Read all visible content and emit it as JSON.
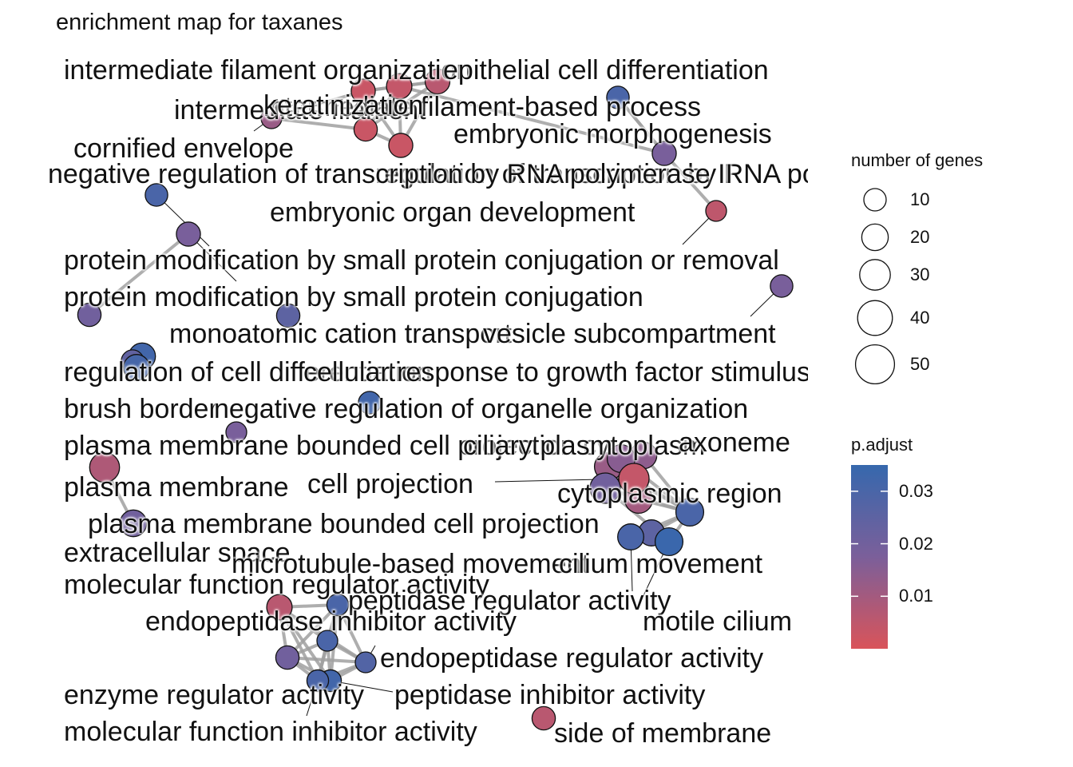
{
  "title": "enrichment map for taxanes",
  "colors": {
    "low": "#d9545a",
    "mid": "#7b5f9a",
    "high": "#3668ad",
    "edge": "#a0a0a0"
  },
  "nodes": [
    {
      "id": "n1",
      "label": "intermediate filament organization",
      "size": 18,
      "p": 0.003
    },
    {
      "id": "n2",
      "label": "epithelial cell differentiation",
      "size": 22,
      "p": 0.004
    },
    {
      "id": "n3",
      "label": "intermediate filament",
      "size": 16,
      "p": 0.003
    },
    {
      "id": "n4",
      "label": "intermediate filament-based process",
      "size": 20,
      "p": 0.006
    },
    {
      "id": "n5",
      "label": "cornified envelope",
      "size": 10,
      "p": 0.012
    },
    {
      "id": "n6",
      "label": "embryonic morphogenesis",
      "size": 18,
      "p": 0.018
    },
    {
      "id": "n7",
      "label": "keratinization",
      "size": 18,
      "p": 0.003
    },
    {
      "id": "n8",
      "label": "regulation of transcription by RNA polymerase II",
      "size": 14,
      "p": 0.03
    },
    {
      "id": "n9",
      "label": "negative regulation of transcription by RNA polymerase II",
      "size": 14,
      "p": 0.03
    },
    {
      "id": "n10",
      "label": "embryonic organ development",
      "size": 10,
      "p": 0.005
    },
    {
      "id": "n11",
      "label": "protein modification by small protein conjugation or removal",
      "size": 18,
      "p": 0.018
    },
    {
      "id": "n12",
      "label": "protein modification by small protein conjugation",
      "size": 16,
      "p": 0.02
    },
    {
      "id": "n13",
      "label": "monoatomic cation transport",
      "size": 16,
      "p": 0.025
    },
    {
      "id": "n14",
      "label": "response to growth factor",
      "size": 26,
      "p": 0.032
    },
    {
      "id": "n15",
      "label": "cellular response to growth factor stimulus",
      "size": 14,
      "p": 0.024
    },
    {
      "id": "n16",
      "label": "regulation of cell differentiation",
      "size": 24,
      "p": 0.031
    },
    {
      "id": "n17",
      "label": "vesicle subcompartment",
      "size": 14,
      "p": 0.018
    },
    {
      "id": "n18",
      "label": "brush border",
      "size": 10,
      "p": 0.018
    },
    {
      "id": "n19",
      "label": "negative regulation of organelle organization",
      "size": 14,
      "p": 0.032
    },
    {
      "id": "n20",
      "label": "plasma membrane bounded cell projection cytoplasm",
      "size": 30,
      "p": 0.012
    },
    {
      "id": "n21",
      "label": "axoneme",
      "size": 26,
      "p": 0.014
    },
    {
      "id": "n22",
      "label": "ciliary plasm",
      "size": 30,
      "p": 0.015
    },
    {
      "id": "n23",
      "label": "cytoplasmic region",
      "size": 30,
      "p": 0.01
    },
    {
      "id": "n24",
      "label": "plasma membrane",
      "size": 38,
      "p": 0.008
    },
    {
      "id": "n25",
      "label": "cell projection",
      "size": 40,
      "p": 0.004
    },
    {
      "id": "n26",
      "label": "plasma membrane bounded cell projection",
      "size": 40,
      "p": 0.02
    },
    {
      "id": "n27",
      "label": "extracellular space",
      "size": 26,
      "p": 0.02
    },
    {
      "id": "n28",
      "label": "cilium",
      "size": 30,
      "p": 0.03
    },
    {
      "id": "n29",
      "label": "microtubule-based movement",
      "size": 24,
      "p": 0.025
    },
    {
      "id": "n30",
      "label": "cilium movement",
      "size": 24,
      "p": 0.03
    },
    {
      "id": "n31",
      "label": "motile cilium",
      "size": 30,
      "p": 0.034
    },
    {
      "id": "n32",
      "label": "molecular function regulator activity",
      "size": 22,
      "p": 0.006
    },
    {
      "id": "n33",
      "label": "peptidase regulator activity",
      "size": 12,
      "p": 0.03
    },
    {
      "id": "n34",
      "label": "endopeptidase inhibitor activity",
      "size": 10,
      "p": 0.03
    },
    {
      "id": "n35",
      "label": "endopeptidase regulator activity",
      "size": 10,
      "p": 0.028
    },
    {
      "id": "n36",
      "label": "enzyme regulator activity",
      "size": 16,
      "p": 0.02
    },
    {
      "id": "n37",
      "label": "peptidase inhibitor activity",
      "size": 12,
      "p": 0.032
    },
    {
      "id": "n38",
      "label": "molecular function inhibitor activity",
      "size": 12,
      "p": 0.03
    },
    {
      "id": "n39",
      "label": "side of membrane",
      "size": 16,
      "p": 0.006
    }
  ],
  "edges": [
    [
      "n1",
      "n2"
    ],
    [
      "n1",
      "n3"
    ],
    [
      "n1",
      "n4"
    ],
    [
      "n1",
      "n7"
    ],
    [
      "n2",
      "n3"
    ],
    [
      "n2",
      "n4"
    ],
    [
      "n2",
      "n7"
    ],
    [
      "n3",
      "n4"
    ],
    [
      "n3",
      "n7"
    ],
    [
      "n4",
      "n7"
    ],
    [
      "n1",
      "n5"
    ],
    [
      "n3",
      "n5"
    ],
    [
      "n6",
      "n8"
    ],
    [
      "n6",
      "n10"
    ],
    [
      "n8",
      "n6"
    ],
    [
      "n6",
      "n2"
    ],
    [
      "n11",
      "n12"
    ],
    [
      "n14",
      "n15"
    ],
    [
      "n20",
      "n21"
    ],
    [
      "n20",
      "n22"
    ],
    [
      "n20",
      "n23"
    ],
    [
      "n20",
      "n25"
    ],
    [
      "n20",
      "n26"
    ],
    [
      "n20",
      "n28"
    ],
    [
      "n21",
      "n22"
    ],
    [
      "n21",
      "n23"
    ],
    [
      "n21",
      "n25"
    ],
    [
      "n21",
      "n26"
    ],
    [
      "n21",
      "n28"
    ],
    [
      "n22",
      "n23"
    ],
    [
      "n22",
      "n25"
    ],
    [
      "n22",
      "n26"
    ],
    [
      "n22",
      "n28"
    ],
    [
      "n23",
      "n25"
    ],
    [
      "n23",
      "n26"
    ],
    [
      "n23",
      "n28"
    ],
    [
      "n25",
      "n26"
    ],
    [
      "n25",
      "n28"
    ],
    [
      "n26",
      "n28"
    ],
    [
      "n28",
      "n29"
    ],
    [
      "n28",
      "n30"
    ],
    [
      "n29",
      "n30"
    ],
    [
      "n30",
      "n31"
    ],
    [
      "n28",
      "n31"
    ],
    [
      "n26",
      "n31"
    ],
    [
      "n24",
      "n27"
    ],
    [
      "n32",
      "n33"
    ],
    [
      "n32",
      "n34"
    ],
    [
      "n32",
      "n35"
    ],
    [
      "n32",
      "n36"
    ],
    [
      "n32",
      "n37"
    ],
    [
      "n32",
      "n38"
    ],
    [
      "n33",
      "n34"
    ],
    [
      "n33",
      "n35"
    ],
    [
      "n33",
      "n36"
    ],
    [
      "n33",
      "n37"
    ],
    [
      "n33",
      "n38"
    ],
    [
      "n34",
      "n35"
    ],
    [
      "n34",
      "n36"
    ],
    [
      "n34",
      "n37"
    ],
    [
      "n34",
      "n38"
    ],
    [
      "n35",
      "n36"
    ],
    [
      "n35",
      "n37"
    ],
    [
      "n35",
      "n38"
    ],
    [
      "n36",
      "n37"
    ],
    [
      "n36",
      "n38"
    ],
    [
      "n37",
      "n38"
    ]
  ],
  "labels": [
    {
      "node": "n1",
      "text": "intermediate filament organization"
    },
    {
      "node": "n2",
      "text": "epithelial cell differentiation"
    },
    {
      "node": "n3",
      "text": "intermediate filament"
    },
    {
      "node": "n4",
      "text": "intermediate filament-based process"
    },
    {
      "node": "n6",
      "text": "embryonic morphogenesis"
    },
    {
      "node": "n5",
      "text": "cornified envelope"
    },
    {
      "node": "n7",
      "text": "keratinization"
    },
    {
      "node": "n8",
      "text": "regulation of transcription by RNA polymerase II"
    },
    {
      "node": "n9",
      "text": "negative regulation of transcription by RNA polymerase II"
    },
    {
      "node": "n10",
      "text": "embryonic organ development"
    },
    {
      "node": "n11",
      "text": "protein modification by small protein conjugation or removal"
    },
    {
      "node": "n12",
      "text": "protein modification by small protein conjugation"
    },
    {
      "node": "n13",
      "text": "monoatomic cation transport"
    },
    {
      "node": "n17",
      "text": "vesicle subcompartment"
    },
    {
      "node": "n16",
      "text": "regulation of cell differentiation"
    },
    {
      "node": "n15",
      "text": "cellular response to growth factor stimulus"
    },
    {
      "node": "n18",
      "text": "brush border"
    },
    {
      "node": "n19",
      "text": "negative regulation of organelle organization"
    },
    {
      "node": "n20",
      "text": "plasma membrane bounded cell projection cytoplasm"
    },
    {
      "node": "n22",
      "text": "ciliary plasm"
    },
    {
      "node": "n21",
      "text": "axoneme"
    },
    {
      "node": "n24",
      "text": "plasma membrane"
    },
    {
      "node": "n25",
      "text": "cell projection"
    },
    {
      "node": "n23",
      "text": "cytoplasmic region"
    },
    {
      "node": "n26",
      "text": "plasma membrane bounded cell projection"
    },
    {
      "node": "n27",
      "text": "extracellular space"
    },
    {
      "node": "n29",
      "text": "microtubule-based movement"
    },
    {
      "node": "n30",
      "text": "cilium movement"
    },
    {
      "node": "n32",
      "text": "molecular function regulator activity"
    },
    {
      "node": "n33",
      "text": "peptidase regulator activity"
    },
    {
      "node": "n34",
      "text": "endopeptidase inhibitor activity"
    },
    {
      "node": "n31",
      "text": "motile cilium"
    },
    {
      "node": "n35",
      "text": "endopeptidase regulator activity"
    },
    {
      "node": "n36",
      "text": "enzyme regulator activity"
    },
    {
      "node": "n37",
      "text": "peptidase inhibitor activity"
    },
    {
      "node": "n38",
      "text": "molecular function inhibitor activity"
    },
    {
      "node": "n39",
      "text": "side of membrane"
    }
  ],
  "legend": {
    "size_title": "number of genes",
    "sizes": [
      10,
      20,
      30,
      40,
      50
    ],
    "color_title": "p.adjust",
    "color_ticks": [
      "0.03",
      "0.02",
      "0.01"
    ],
    "color_tick_values": [
      0.03,
      0.02,
      0.01
    ],
    "color_range": [
      0.0,
      0.035
    ]
  }
}
